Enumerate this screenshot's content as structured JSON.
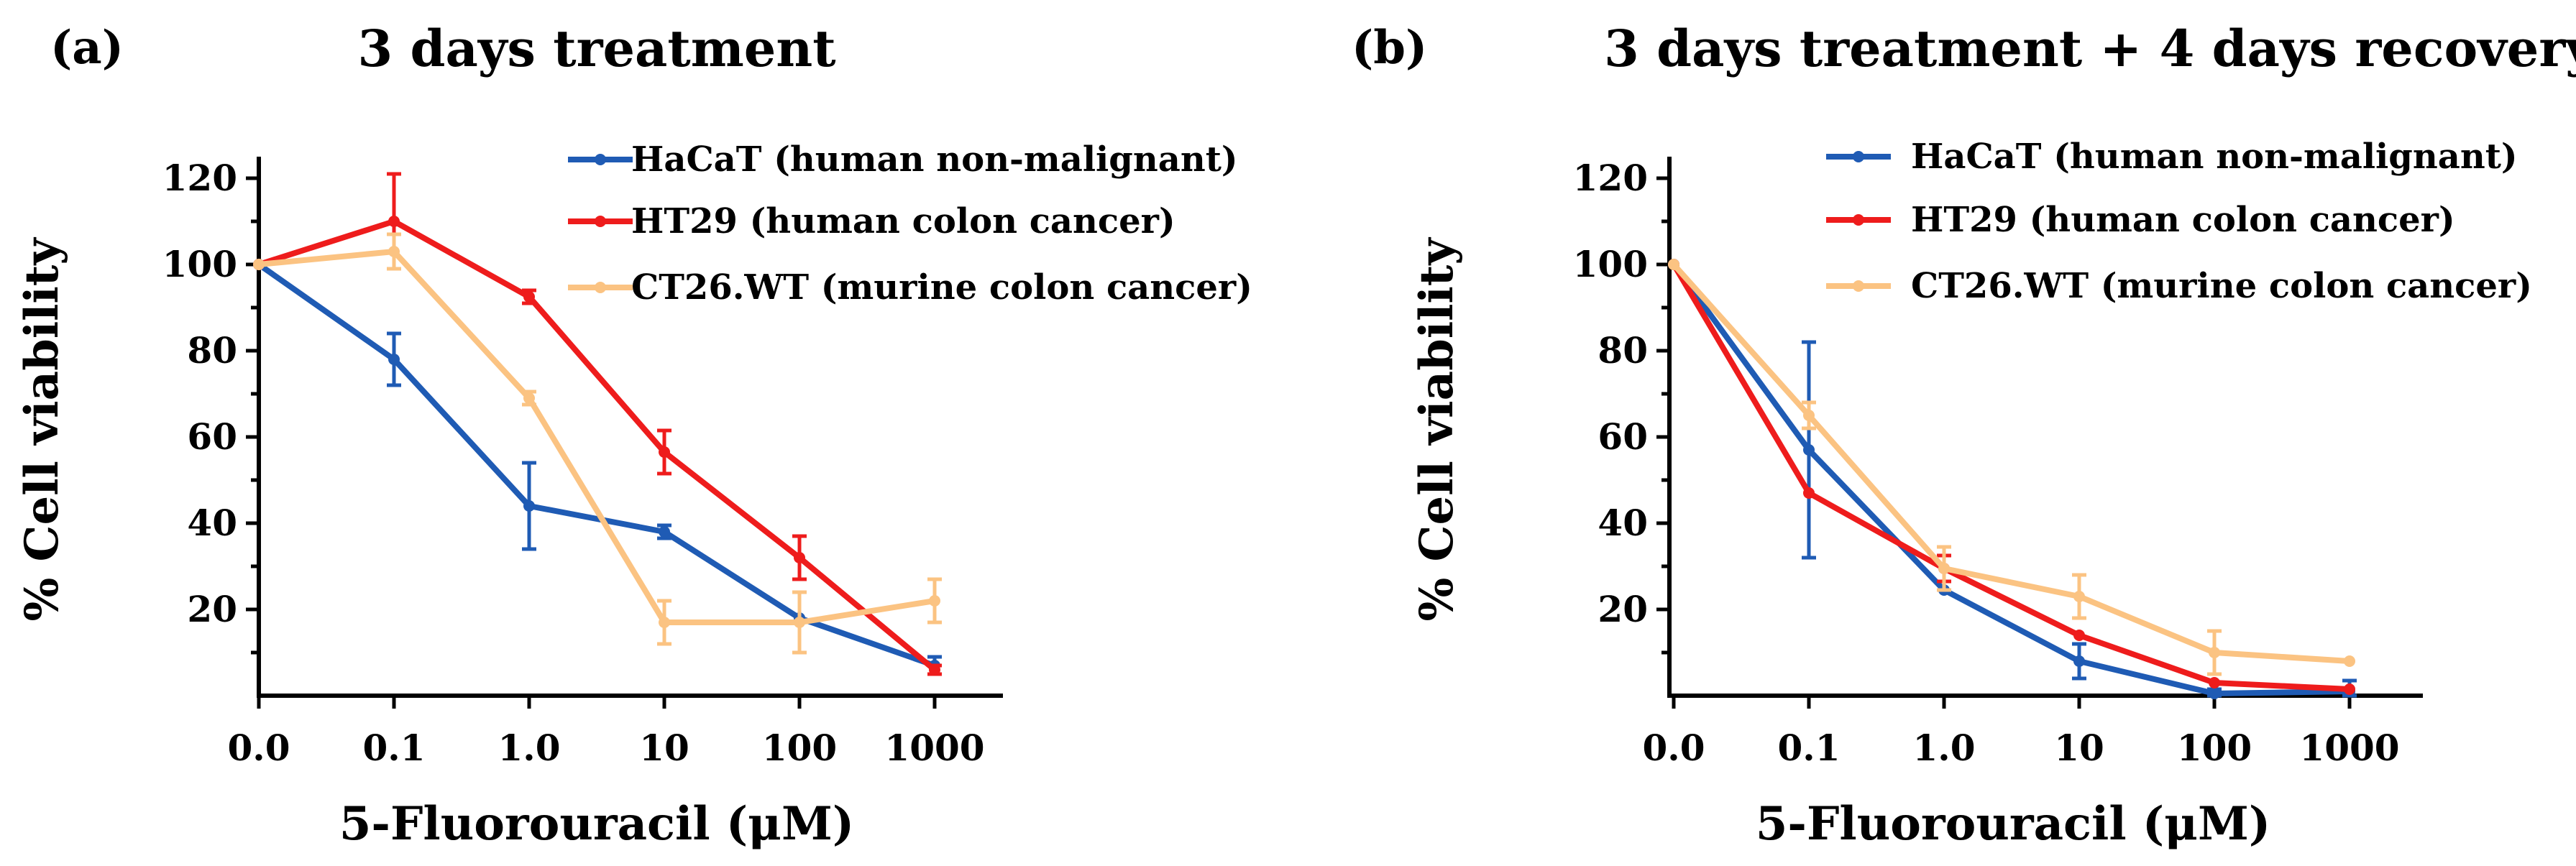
{
  "chart_data": [
    {
      "type": "line",
      "panel_label": "(a)",
      "title": "3 days treatment",
      "xlabel": "5-Fluorouracil (μM)",
      "ylabel": "% Cell viability",
      "categories": [
        "0.0",
        "0.1",
        "1.0",
        "10",
        "100",
        "1000"
      ],
      "yticks": [
        "20",
        "40",
        "60",
        "80",
        "100",
        "120"
      ],
      "ylim": [
        0,
        125
      ],
      "legend_position": "top-right",
      "series": [
        {
          "name": "HaCaT (human non-malignant)",
          "color": "#1f5bb4",
          "values": [
            100,
            78,
            44,
            38,
            18,
            7
          ],
          "errors": [
            0,
            6,
            10,
            1.5,
            0,
            2
          ]
        },
        {
          "name": "HT29 (human colon cancer)",
          "color": "#ee1c1c",
          "values": [
            100,
            110,
            92.5,
            56.5,
            32,
            6
          ],
          "errors": [
            0,
            11,
            1.5,
            5,
            5,
            1
          ]
        },
        {
          "name": "CT26.WT (murine colon cancer)",
          "color": "#fbc382",
          "values": [
            100,
            103,
            69,
            17,
            17,
            22
          ],
          "errors": [
            0,
            4,
            1.5,
            5,
            7,
            5
          ]
        }
      ]
    },
    {
      "type": "line",
      "panel_label": "(b)",
      "title": "3 days treatment + 4 days recovery",
      "xlabel": "5-Fluorouracil (μM)",
      "ylabel": "% Cell viability",
      "categories": [
        "0.0",
        "0.1",
        "1.0",
        "10",
        "100",
        "1000"
      ],
      "yticks": [
        "20",
        "40",
        "60",
        "80",
        "100",
        "120"
      ],
      "ylim": [
        0,
        125
      ],
      "legend_position": "top-right",
      "series": [
        {
          "name": "HaCaT (human non-malignant)",
          "color": "#1f5bb4",
          "values": [
            100,
            57,
            24.5,
            8,
            0.5,
            1
          ],
          "errors": [
            0,
            25,
            0,
            4,
            1,
            2.5
          ]
        },
        {
          "name": "HT29 (human colon cancer)",
          "color": "#ee1c1c",
          "values": [
            100,
            47,
            29.5,
            14,
            3,
            1.5
          ],
          "errors": [
            0,
            0,
            3,
            0,
            0,
            0
          ]
        },
        {
          "name": "CT26.WT (murine colon cancer)",
          "color": "#fbc382",
          "values": [
            100,
            65,
            29.5,
            23,
            10,
            8
          ],
          "errors": [
            0,
            3,
            5,
            5,
            5,
            0
          ]
        }
      ]
    }
  ]
}
